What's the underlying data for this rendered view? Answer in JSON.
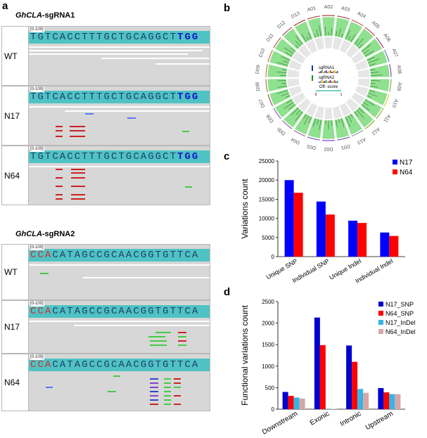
{
  "panel_a": {
    "letter": "a",
    "sgRNA1": {
      "title_gene": "GhCLA",
      "title_rest": "-sgRNA1",
      "range_label": "[0-100]",
      "sequence": "TGTCACCTTTGCTGCAGGCT",
      "pam": "TGG",
      "rows": [
        "WT",
        "N17",
        "N64"
      ]
    },
    "sgRNA2": {
      "title_gene": "GhCLA",
      "title_rest": "-sgRNA2",
      "range_label": "[0-100]",
      "pam": "CCA",
      "sequence": "CATAGCCGCAACGGTGTTCA",
      "rows": [
        "WT",
        "N17",
        "N64"
      ]
    }
  },
  "panel_b": {
    "letter": "b",
    "chromosomes": [
      "A01",
      "A02",
      "A03",
      "A04",
      "A05",
      "A06",
      "A07",
      "A08",
      "A09",
      "A10",
      "A11",
      "A12",
      "A13",
      "D01",
      "D02",
      "D03",
      "D04",
      "D05",
      "D06",
      "D07",
      "D08",
      "D09",
      "D10",
      "D11",
      "D12",
      "D13"
    ],
    "center_labels": [
      "sgRNA1",
      "sgRNA2",
      "Off- score"
    ],
    "scale_min": "0",
    "scale_max": "1",
    "colors": {
      "ring": "#8fe08f",
      "grey_ring": "#e6e6e6"
    }
  },
  "panel_c": {
    "letter": "c",
    "chart_data": {
      "type": "bar",
      "categories": [
        "Unique SNP",
        "Individual SNP",
        "Unique Indel",
        "Individual Indel"
      ],
      "series": [
        {
          "name": "N17",
          "values": [
            20000,
            14400,
            9400,
            6300
          ],
          "color": "#0000ff"
        },
        {
          "name": "N64",
          "values": [
            16700,
            11000,
            8800,
            5400
          ],
          "color": "#ff0000"
        }
      ],
      "ylabel": "Variations count",
      "ylim": [
        0,
        25000
      ],
      "yticks": [
        "0",
        "5000",
        "10000",
        "15000",
        "20000",
        "25000"
      ],
      "legend": "top-right"
    }
  },
  "panel_d": {
    "letter": "d",
    "chart_data": {
      "type": "bar",
      "categories": [
        "Downstream",
        "Exonic",
        "Intronic",
        "Upstream"
      ],
      "series": [
        {
          "name": "N17_SNP",
          "values": [
            400,
            2130,
            1480,
            490
          ],
          "color": "#0000cc"
        },
        {
          "name": "N64_SNP",
          "values": [
            310,
            1490,
            1100,
            390
          ],
          "color": "#ff0000"
        },
        {
          "name": "N17_InDel",
          "values": [
            270,
            10,
            470,
            350
          ],
          "color": "#33b5e5"
        },
        {
          "name": "N64_InDel",
          "values": [
            245,
            8,
            380,
            350
          ],
          "color": "#d9a6a6"
        }
      ],
      "ylabel": "Functional variations count",
      "ylim": [
        0,
        2500
      ],
      "yticks": [
        "0",
        "500",
        "1000",
        "1500",
        "2000",
        "2500"
      ],
      "legend": "top-right"
    }
  }
}
